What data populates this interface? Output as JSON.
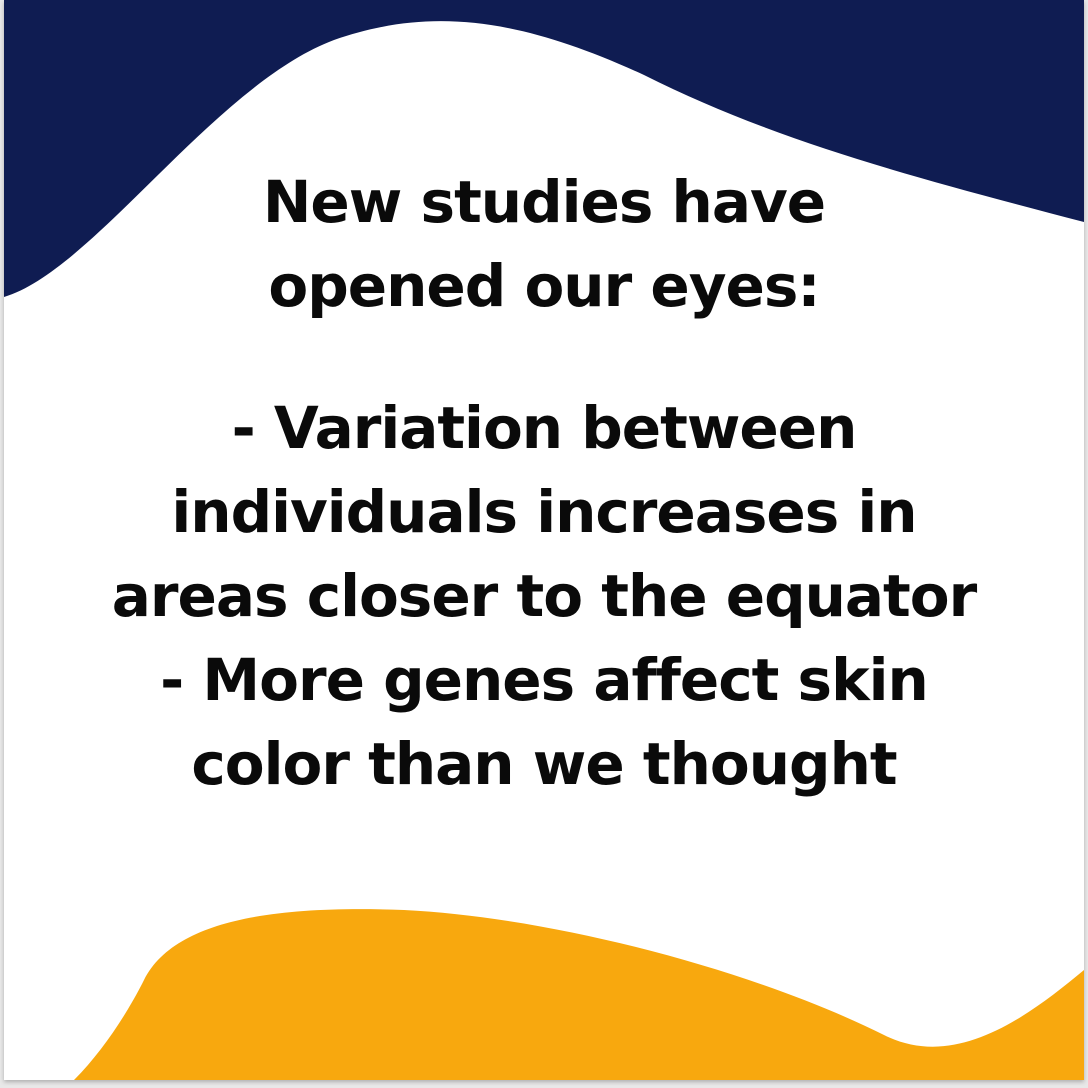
{
  "colors": {
    "top_wave": "#0f1c52",
    "bottom_wave": "#f8a80e",
    "background": "#ffffff",
    "text": "#0a0a0a"
  },
  "heading": {
    "lines": [
      "New studies have",
      "opened our eyes:"
    ]
  },
  "body": {
    "lines": [
      "- Variation between",
      "individuals increases in",
      "areas closer to the equator",
      "- More genes affect skin",
      "color than we thought"
    ]
  }
}
